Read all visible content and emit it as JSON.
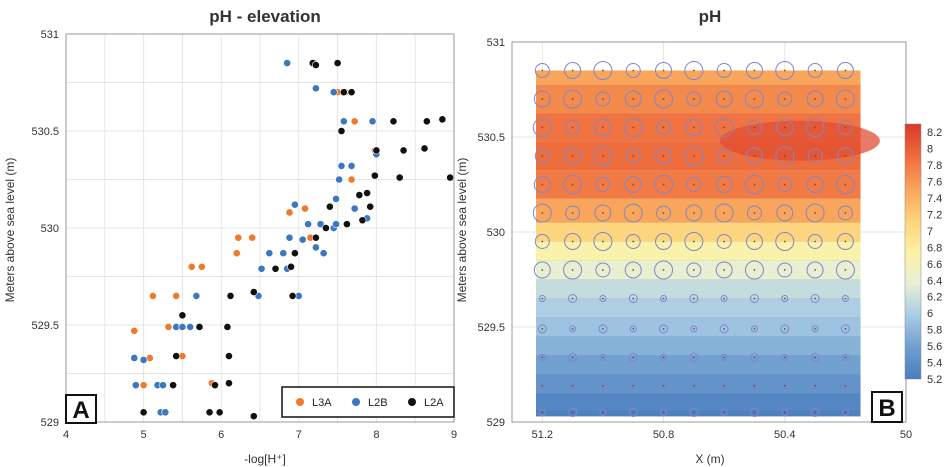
{
  "chart_data": [
    {
      "type": "scatter",
      "panel_letter": "A",
      "title": "pH - elevation",
      "xlabel": "-log[H⁺]",
      "ylabel": "Meters above sea level (m)",
      "xlim": [
        4,
        9
      ],
      "ylim": [
        529,
        531
      ],
      "x_ticks": [
        4,
        5,
        6,
        7,
        8,
        9
      ],
      "y_ticks": [
        529,
        529.5,
        530,
        530.5,
        531
      ],
      "y_tick_labels": [
        "529",
        "529.5",
        "530",
        "530.5",
        "531"
      ],
      "grid": true,
      "legend_position": "bottom-right",
      "series": [
        {
          "name": "L3A",
          "color": "#f07a2a",
          "points": [
            [
              4.88,
              529.47
            ],
            [
              5.0,
              529.05
            ],
            [
              5.0,
              529.19
            ],
            [
              5.08,
              529.33
            ],
            [
              5.12,
              529.65
            ],
            [
              5.32,
              529.49
            ],
            [
              5.42,
              529.65
            ],
            [
              5.5,
              529.34
            ],
            [
              5.62,
              529.8
            ],
            [
              5.75,
              529.8
            ],
            [
              5.88,
              529.2
            ],
            [
              6.2,
              529.87
            ],
            [
              6.22,
              529.95
            ],
            [
              6.4,
              529.95
            ],
            [
              6.88,
              530.08
            ],
            [
              7.08,
              530.1
            ],
            [
              7.15,
              529.95
            ],
            [
              7.5,
              530.7
            ],
            [
              7.6,
              530.7
            ],
            [
              7.72,
              530.55
            ],
            [
              7.68,
              530.25
            ],
            [
              7.98,
              530.4
            ]
          ]
        },
        {
          "name": "L2B",
          "color": "#3b78bf",
          "points": [
            [
              4.88,
              529.33
            ],
            [
              4.9,
              529.19
            ],
            [
              5.0,
              529.32
            ],
            [
              5.18,
              529.19
            ],
            [
              5.22,
              529.05
            ],
            [
              5.28,
              529.05
            ],
            [
              5.25,
              529.19
            ],
            [
              5.42,
              529.49
            ],
            [
              5.5,
              529.49
            ],
            [
              5.6,
              529.49
            ],
            [
              5.68,
              529.65
            ],
            [
              6.48,
              529.65
            ],
            [
              6.52,
              529.79
            ],
            [
              6.62,
              529.87
            ],
            [
              6.8,
              529.87
            ],
            [
              6.85,
              529.79
            ],
            [
              6.88,
              529.95
            ],
            [
              6.95,
              530.12
            ],
            [
              7.05,
              529.94
            ],
            [
              7.0,
              529.65
            ],
            [
              7.12,
              530.02
            ],
            [
              7.22,
              529.9
            ],
            [
              7.28,
              530.02
            ],
            [
              7.32,
              529.87
            ],
            [
              7.45,
              530.0
            ],
            [
              7.48,
              530.15
            ],
            [
              7.52,
              530.25
            ],
            [
              7.55,
              530.32
            ],
            [
              7.58,
              530.55
            ],
            [
              7.68,
              530.32
            ],
            [
              7.72,
              530.1
            ],
            [
              7.88,
              530.05
            ],
            [
              7.95,
              530.55
            ],
            [
              8.0,
              530.38
            ],
            [
              6.85,
              530.85
            ],
            [
              7.22,
              530.72
            ],
            [
              7.45,
              530.7
            ],
            [
              7.2,
              530.85
            ],
            [
              7.48,
              530.02
            ]
          ]
        },
        {
          "name": "L2A",
          "color": "#111111",
          "points": [
            [
              5.0,
              529.05
            ],
            [
              5.38,
              529.19
            ],
            [
              5.42,
              529.34
            ],
            [
              5.5,
              529.55
            ],
            [
              5.72,
              529.49
            ],
            [
              5.85,
              529.05
            ],
            [
              5.92,
              529.19
            ],
            [
              5.98,
              529.05
            ],
            [
              6.08,
              529.49
            ],
            [
              6.1,
              529.34
            ],
            [
              6.1,
              529.2
            ],
            [
              6.12,
              529.65
            ],
            [
              6.42,
              529.03
            ],
            [
              6.42,
              529.67
            ],
            [
              6.7,
              529.79
            ],
            [
              6.9,
              529.8
            ],
            [
              6.92,
              529.65
            ],
            [
              6.95,
              529.87
            ],
            [
              7.22,
              529.95
            ],
            [
              7.35,
              530.0
            ],
            [
              7.4,
              530.11
            ],
            [
              7.62,
              530.02
            ],
            [
              7.78,
              530.17
            ],
            [
              7.82,
              530.04
            ],
            [
              7.88,
              530.18
            ],
            [
              7.92,
              530.11
            ],
            [
              7.98,
              530.27
            ],
            [
              8.0,
              530.4
            ],
            [
              8.22,
              530.55
            ],
            [
              8.35,
              530.4
            ],
            [
              8.3,
              530.26
            ],
            [
              8.62,
              530.41
            ],
            [
              8.65,
              530.55
            ],
            [
              8.85,
              530.56
            ],
            [
              8.95,
              530.26
            ],
            [
              7.18,
              530.85
            ],
            [
              7.5,
              530.85
            ],
            [
              7.58,
              530.7
            ],
            [
              7.68,
              530.7
            ],
            [
              7.55,
              530.5
            ],
            [
              7.22,
              530.84
            ]
          ]
        }
      ]
    },
    {
      "type": "heatmap",
      "panel_letter": "B",
      "title": "pH",
      "xlabel": "X (m)",
      "ylabel": "Meters above sea level (m)",
      "xlim": [
        51.3,
        50.0
      ],
      "ylim": [
        529,
        531
      ],
      "x_ticks": [
        51.2,
        50.8,
        50.4,
        50
      ],
      "x_tick_labels": [
        "51.2",
        "50.8",
        "50.4",
        "50"
      ],
      "y_ticks": [
        529,
        529.5,
        530,
        530.5,
        531
      ],
      "y_tick_labels": [
        "529",
        "529.5",
        "530",
        "530.5",
        "531"
      ],
      "grid": true,
      "contour_bands_pH_by_elevation": [
        [
          530.85,
          7.5
        ],
        [
          530.7,
          7.7
        ],
        [
          530.55,
          7.85
        ],
        [
          530.4,
          7.9
        ],
        [
          530.25,
          7.8
        ],
        [
          530.1,
          7.5
        ],
        [
          530.0,
          7.1
        ],
        [
          529.9,
          6.7
        ],
        [
          529.8,
          6.4
        ],
        [
          529.7,
          6.15
        ],
        [
          529.6,
          6.0
        ],
        [
          529.5,
          5.9
        ],
        [
          529.4,
          5.75
        ],
        [
          529.3,
          5.6
        ],
        [
          529.2,
          5.45
        ],
        [
          529.1,
          5.3
        ],
        [
          529.03,
          5.25
        ]
      ],
      "sample_circle_rows": [
        530.85,
        530.7,
        530.55,
        530.4,
        530.25,
        530.1,
        529.95,
        529.8,
        529.65,
        529.49,
        529.34,
        529.19,
        529.05
      ],
      "sample_circle_columns": [
        51.2,
        51.1,
        51.0,
        50.9,
        50.8,
        50.7,
        50.6,
        50.5,
        50.4,
        50.3,
        50.2
      ],
      "colorbar": {
        "min": 5.2,
        "max": 8.3,
        "ticks": [
          "8.2",
          "8",
          "7.8",
          "7.6",
          "7.4",
          "7.2",
          "7",
          "6.8",
          "6.6",
          "6.4",
          "6.2",
          "6",
          "5.8",
          "5.6",
          "5.4",
          "5.2"
        ],
        "colors": [
          "#4a7dbf",
          "#6f9fd0",
          "#a9cce4",
          "#e7f0d6",
          "#fdf1a4",
          "#fdd27a",
          "#f9a35a",
          "#ef6a3c",
          "#d93a2b"
        ]
      }
    }
  ]
}
